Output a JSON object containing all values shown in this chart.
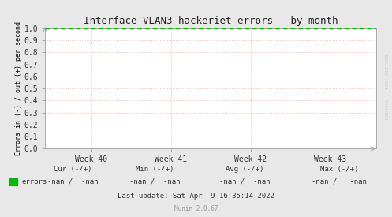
{
  "title": "Interface VLAN3-hackeriet errors - by month",
  "ylabel": "Errors in (-) / out (+) per second",
  "background_color": "#e8e8e8",
  "plot_bg_color": "#ffffff",
  "grid_color": "#ffaaaa",
  "ylim": [
    0.0,
    1.0
  ],
  "yticks": [
    0.0,
    0.1,
    0.2,
    0.3,
    0.4,
    0.5,
    0.6,
    0.7,
    0.8,
    0.9,
    1.0
  ],
  "xtick_labels": [
    "Week 40",
    "Week 41",
    "Week 42",
    "Week 43"
  ],
  "xtick_positions": [
    0.14,
    0.38,
    0.62,
    0.86
  ],
  "dashed_line_y": 1.0,
  "dashed_line_color": "#00bb00",
  "zero_line_color": "#333333",
  "border_color": "#aaaaaa",
  "title_fontsize": 9,
  "tick_fontsize": 7,
  "ylabel_fontsize": 6,
  "legend_label": "errors",
  "legend_color": "#00bb00",
  "cur_label": "Cur (-/+)",
  "min_label": "Min (-/+)",
  "avg_label": "Avg (-/+)",
  "max_label": "Max (-/+)",
  "cur_val": "-nan /  -nan",
  "min_val": "-nan /  -nan",
  "avg_val": "-nan /  -nan",
  "max_val": "-nan /   -nan",
  "last_update": "Last update: Sat Apr  9 16:35:14 2022",
  "munin_label": "Munin 2.0.67",
  "watermark": "RRDTOOL / TOBI OETIKER",
  "watermark_color": "#cccccc",
  "tick_color": "#aaaacc",
  "stats_fontsize": 6.5
}
